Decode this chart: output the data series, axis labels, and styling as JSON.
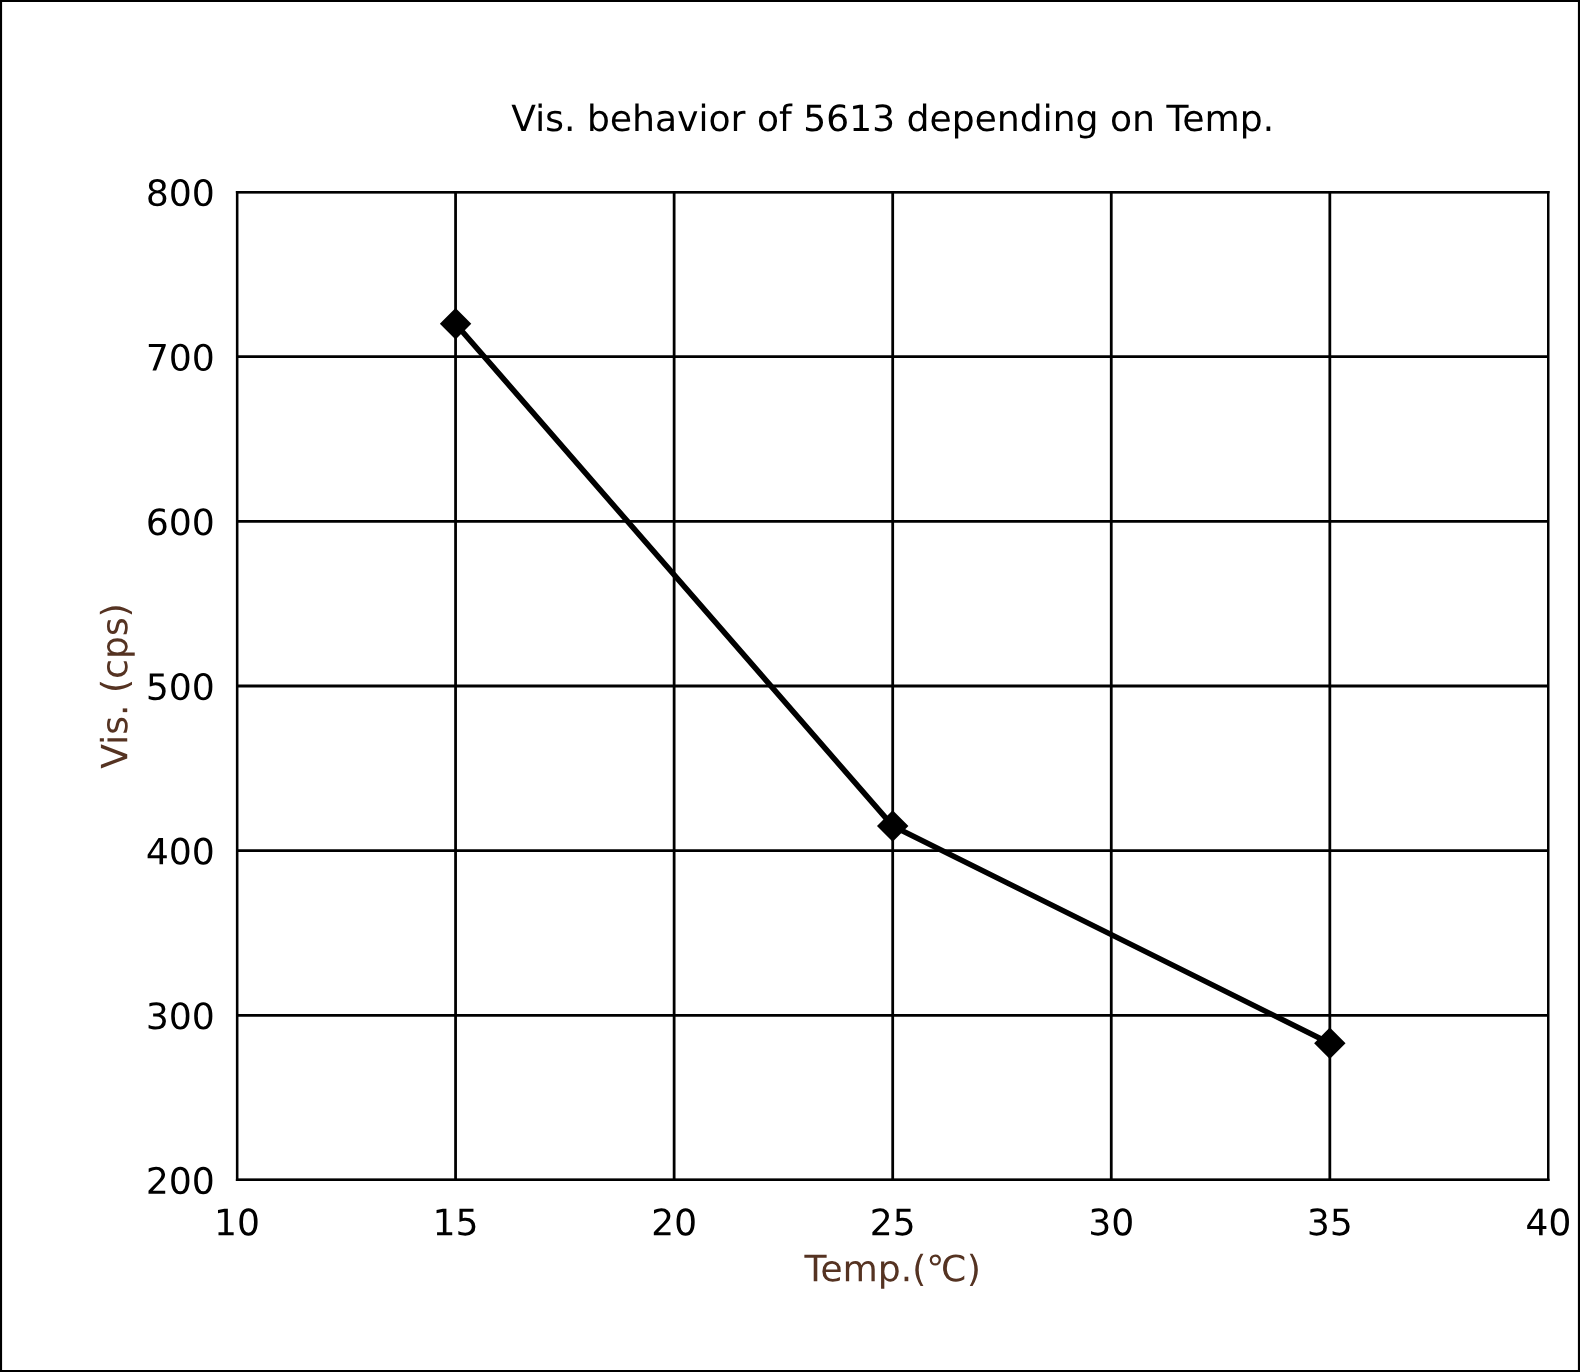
{
  "chart_data": {
    "type": "line",
    "title": "Vis. behavior of 5613 depending on Temp.",
    "xlabel": "Temp.(℃)",
    "ylabel": "Vis. (cps)",
    "x": [
      15,
      25,
      35
    ],
    "series": [
      {
        "color": "#000000",
        "values": [
          720,
          415,
          283
        ]
      }
    ],
    "xlim": [
      10,
      40
    ],
    "xticks": [
      10,
      15,
      20,
      25,
      30,
      35,
      40
    ],
    "ylim": [
      200,
      800
    ],
    "yticks": [
      200,
      300,
      400,
      500,
      600,
      700,
      800
    ],
    "grid": true,
    "marker": "diamond",
    "line_style": "solid",
    "legend": false
  }
}
